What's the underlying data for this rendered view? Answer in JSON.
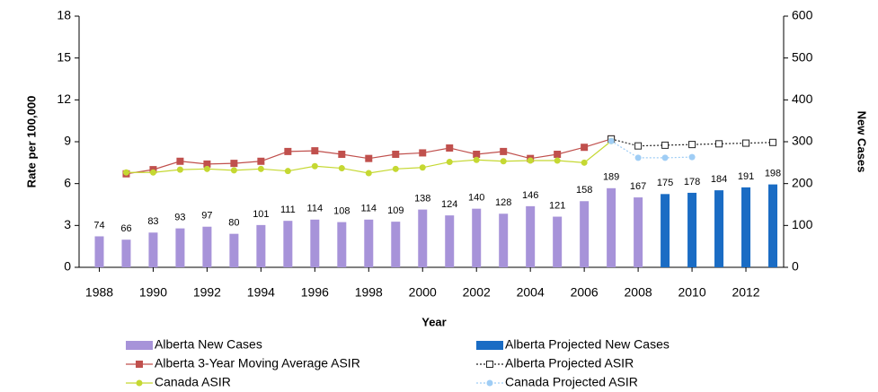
{
  "chart_data": {
    "type": "combo",
    "x": [
      1988,
      1989,
      1990,
      1991,
      1992,
      1993,
      1994,
      1995,
      1996,
      1997,
      1998,
      1999,
      2000,
      2001,
      2002,
      2003,
      2004,
      2005,
      2006,
      2007,
      2008,
      2009,
      2010,
      2011,
      2012,
      2013
    ],
    "xlim": [
      1987.25,
      2013.4
    ],
    "xticks": [
      1988,
      1990,
      1992,
      1994,
      1996,
      1998,
      2000,
      2002,
      2004,
      2006,
      2008,
      2010,
      2012
    ],
    "x_label": "Year",
    "y_label": "Rate per 100,000",
    "y2_label": "New Cases",
    "ylim": [
      0,
      18
    ],
    "yticks": [
      0,
      3,
      6,
      9,
      12,
      15,
      18
    ],
    "y2lim": [
      0,
      600
    ],
    "y2ticks": [
      0,
      100,
      200,
      300,
      400,
      500,
      600
    ],
    "series": [
      {
        "name": "Alberta New Cases",
        "type": "bar",
        "axis": "y2",
        "color": "#a793d9",
        "data_labels": true,
        "values": [
          74,
          66,
          83,
          93,
          97,
          80,
          101,
          111,
          114,
          108,
          114,
          109,
          138,
          124,
          140,
          128,
          146,
          121,
          158,
          189,
          167,
          null,
          null,
          null,
          null,
          null
        ]
      },
      {
        "name": "Alberta Projected New Cases",
        "type": "bar",
        "axis": "y2",
        "color": "#1a6cc4",
        "data_labels": true,
        "values": [
          null,
          null,
          null,
          null,
          null,
          null,
          null,
          null,
          null,
          null,
          null,
          null,
          null,
          null,
          null,
          null,
          null,
          null,
          null,
          null,
          null,
          175,
          178,
          184,
          191,
          198
        ]
      },
      {
        "name": "Alberta 3-Year Moving Average ASIR",
        "type": "line",
        "axis": "y",
        "color": "#c0504d",
        "marker": "square",
        "dashed": false,
        "values": [
          null,
          6.7,
          7.0,
          7.6,
          7.4,
          7.45,
          7.6,
          8.3,
          8.35,
          8.1,
          7.8,
          8.1,
          8.2,
          8.55,
          8.1,
          8.3,
          7.8,
          8.1,
          8.6,
          9.2,
          null,
          null,
          null,
          null,
          null,
          null
        ]
      },
      {
        "name": "Alberta Projected ASIR",
        "type": "line",
        "axis": "y",
        "color": "#222222",
        "marker": "hollow-square",
        "dashed": true,
        "values": [
          null,
          null,
          null,
          null,
          null,
          null,
          null,
          null,
          null,
          null,
          null,
          null,
          null,
          null,
          null,
          null,
          null,
          null,
          null,
          9.2,
          8.7,
          8.75,
          8.8,
          8.85,
          8.9,
          8.95
        ]
      },
      {
        "name": "Canada ASIR",
        "type": "line",
        "axis": "y",
        "color": "#c5d832",
        "marker": "circle",
        "dashed": false,
        "values": [
          null,
          6.8,
          6.8,
          7.0,
          7.05,
          6.95,
          7.05,
          6.9,
          7.25,
          7.1,
          6.75,
          7.05,
          7.15,
          7.55,
          7.7,
          7.6,
          7.65,
          7.65,
          7.5,
          9.05,
          null,
          null,
          null,
          null,
          null,
          null
        ]
      },
      {
        "name": "Canada Projected ASIR",
        "type": "line",
        "axis": "y",
        "color": "#9fcdf5",
        "marker": "circle",
        "dashed": true,
        "values": [
          null,
          null,
          null,
          null,
          null,
          null,
          null,
          null,
          null,
          null,
          null,
          null,
          null,
          null,
          null,
          null,
          null,
          null,
          null,
          9.05,
          7.85,
          7.85,
          7.9,
          null,
          null,
          null
        ]
      }
    ]
  }
}
